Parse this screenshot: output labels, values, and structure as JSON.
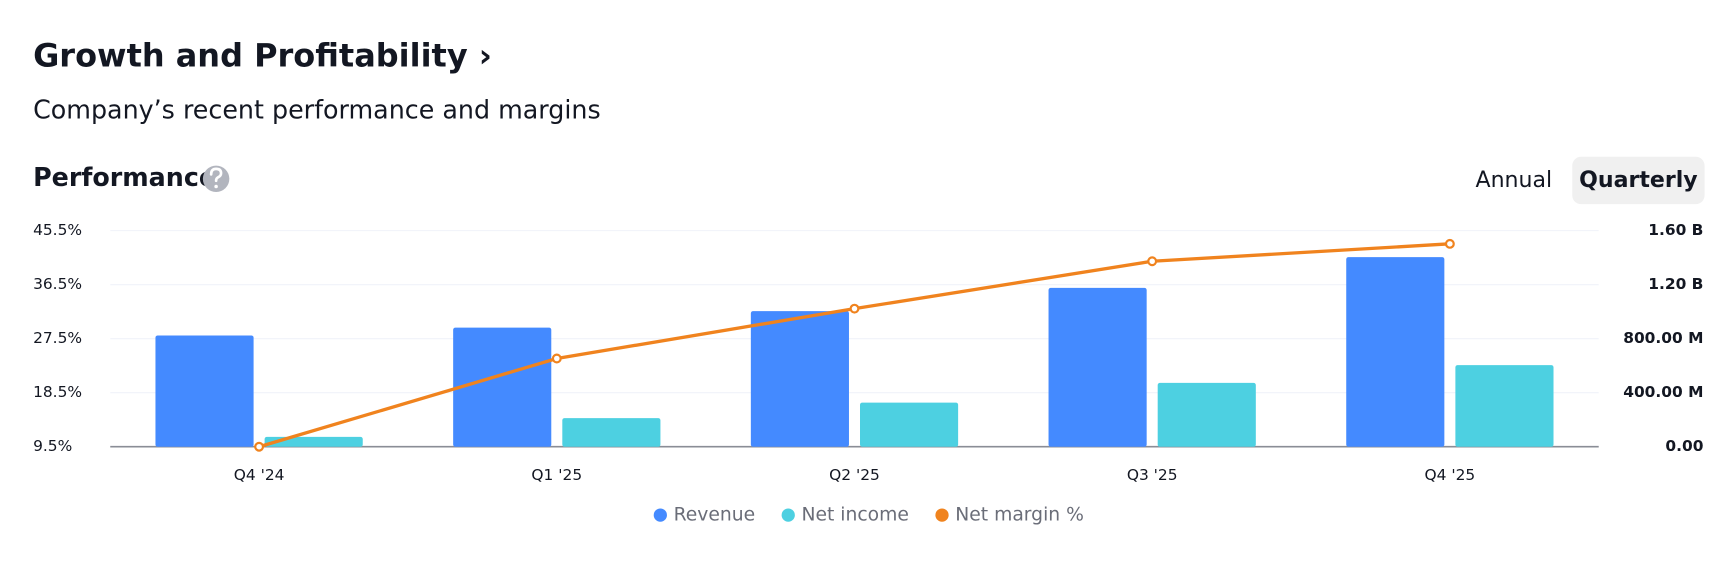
{
  "header": {
    "title": "Growth and Profitability ›",
    "subtitle": "Company’s recent performance and margins"
  },
  "section": {
    "title": "Performance"
  },
  "toggle": {
    "options": [
      "Annual",
      "Quarterly"
    ]
  },
  "chart_data": {
    "type": "bar-line",
    "categories": [
      "Q4 '24",
      "Q1 '25",
      "Q2 '25",
      "Q3 '25",
      "Q4 '25"
    ],
    "series": [
      {
        "name": "Revenue",
        "type": "bar",
        "axis": "y2",
        "color": "#448aff",
        "values": [
          824000000,
          882000000,
          1004000000,
          1176000000,
          1404000000
        ]
      },
      {
        "name": "Net income",
        "type": "bar",
        "axis": "y2",
        "color": "#4dd0e1",
        "values": [
          73000000,
          212000000,
          327000000,
          473000000,
          604000000
        ]
      },
      {
        "name": "Net margin %",
        "type": "line",
        "axis": "y",
        "color": "#f0831e",
        "values": [
          9.5,
          24.2,
          32.5,
          40.4,
          43.3
        ]
      }
    ],
    "ylim": [
      9.5,
      45.5
    ],
    "yticks": [
      {
        "value": 9.5,
        "label": "9.5%"
      },
      {
        "value": 18.5,
        "label": "18.5%"
      },
      {
        "value": 27.5,
        "label": "27.5%"
      },
      {
        "value": 36.5,
        "label": "36.5%"
      },
      {
        "value": 45.5,
        "label": "45.5%"
      }
    ],
    "y2lim": [
      0,
      1600000000
    ],
    "y2ticks": [
      {
        "value": 0,
        "label": "0.00"
      },
      {
        "value": 400000000,
        "label": "400.00 M"
      },
      {
        "value": 800000000,
        "label": "800.00 M"
      },
      {
        "value": 1200000000,
        "label": "1.20 B"
      },
      {
        "value": 1600000000,
        "label": "1.60 B"
      }
    ],
    "grid": true
  }
}
